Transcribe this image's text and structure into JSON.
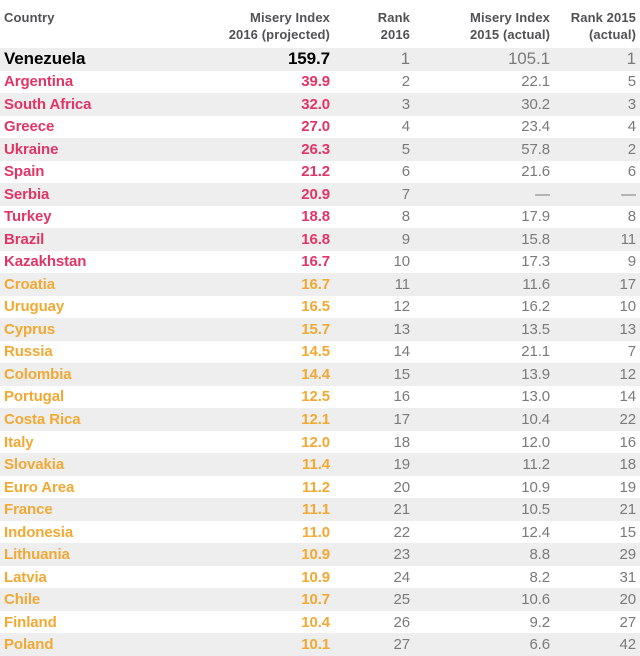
{
  "colors": {
    "pink": "#e23566",
    "gold": "#f1a933",
    "black": "#000000",
    "muted": "#7a7a7a",
    "header": "#525254",
    "stripe": "#eeeeee"
  },
  "chart_data": {
    "type": "table",
    "columns": [
      {
        "id": "country",
        "label_line1": "Country",
        "label_line2": "",
        "align": "left"
      },
      {
        "id": "mi2016",
        "label_line1": "Misery Index",
        "label_line2": "2016 (projected)",
        "align": "right"
      },
      {
        "id": "rank2016",
        "label_line1": "Rank",
        "label_line2": "2016",
        "align": "right"
      },
      {
        "id": "mi2015",
        "label_line1": "Misery Index",
        "label_line2": "2015 (actual)",
        "align": "right"
      },
      {
        "id": "rank2015",
        "label_line1": "Rank 2015",
        "label_line2": "(actual)",
        "align": "right"
      }
    ],
    "rows": [
      {
        "country": "Venezuela",
        "mi2016": "159.7",
        "rank2016": "1",
        "mi2015": "105.1",
        "rank2015": "1",
        "tier": "black"
      },
      {
        "country": "Argentina",
        "mi2016": "39.9",
        "rank2016": "2",
        "mi2015": "22.1",
        "rank2015": "5",
        "tier": "pink"
      },
      {
        "country": "South Africa",
        "mi2016": "32.0",
        "rank2016": "3",
        "mi2015": "30.2",
        "rank2015": "3",
        "tier": "pink"
      },
      {
        "country": "Greece",
        "mi2016": "27.0",
        "rank2016": "4",
        "mi2015": "23.4",
        "rank2015": "4",
        "tier": "pink"
      },
      {
        "country": "Ukraine",
        "mi2016": "26.3",
        "rank2016": "5",
        "mi2015": "57.8",
        "rank2015": "2",
        "tier": "pink"
      },
      {
        "country": "Spain",
        "mi2016": "21.2",
        "rank2016": "6",
        "mi2015": "21.6",
        "rank2015": "6",
        "tier": "pink"
      },
      {
        "country": "Serbia",
        "mi2016": "20.9",
        "rank2016": "7",
        "mi2015": "—",
        "rank2015": "—",
        "tier": "pink"
      },
      {
        "country": "Turkey",
        "mi2016": "18.8",
        "rank2016": "8",
        "mi2015": "17.9",
        "rank2015": "8",
        "tier": "pink"
      },
      {
        "country": "Brazil",
        "mi2016": "16.8",
        "rank2016": "9",
        "mi2015": "15.8",
        "rank2015": "11",
        "tier": "pink"
      },
      {
        "country": "Kazakhstan",
        "mi2016": "16.7",
        "rank2016": "10",
        "mi2015": "17.3",
        "rank2015": "9",
        "tier": "pink"
      },
      {
        "country": "Croatia",
        "mi2016": "16.7",
        "rank2016": "11",
        "mi2015": "11.6",
        "rank2015": "17",
        "tier": "gold"
      },
      {
        "country": "Uruguay",
        "mi2016": "16.5",
        "rank2016": "12",
        "mi2015": "16.2",
        "rank2015": "10",
        "tier": "gold"
      },
      {
        "country": "Cyprus",
        "mi2016": "15.7",
        "rank2016": "13",
        "mi2015": "13.5",
        "rank2015": "13",
        "tier": "gold"
      },
      {
        "country": "Russia",
        "mi2016": "14.5",
        "rank2016": "14",
        "mi2015": "21.1",
        "rank2015": "7",
        "tier": "gold"
      },
      {
        "country": "Colombia",
        "mi2016": "14.4",
        "rank2016": "15",
        "mi2015": "13.9",
        "rank2015": "12",
        "tier": "gold"
      },
      {
        "country": "Portugal",
        "mi2016": "12.5",
        "rank2016": "16",
        "mi2015": "13.0",
        "rank2015": "14",
        "tier": "gold"
      },
      {
        "country": "Costa Rica",
        "mi2016": "12.1",
        "rank2016": "17",
        "mi2015": "10.4",
        "rank2015": "22",
        "tier": "gold"
      },
      {
        "country": "Italy",
        "mi2016": "12.0",
        "rank2016": "18",
        "mi2015": "12.0",
        "rank2015": "16",
        "tier": "gold"
      },
      {
        "country": "Slovakia",
        "mi2016": "11.4",
        "rank2016": "19",
        "mi2015": "11.2",
        "rank2015": "18",
        "tier": "gold"
      },
      {
        "country": "Euro Area",
        "mi2016": "11.2",
        "rank2016": "20",
        "mi2015": "10.9",
        "rank2015": "19",
        "tier": "gold"
      },
      {
        "country": "France",
        "mi2016": "11.1",
        "rank2016": "21",
        "mi2015": "10.5",
        "rank2015": "21",
        "tier": "gold"
      },
      {
        "country": "Indonesia",
        "mi2016": "11.0",
        "rank2016": "22",
        "mi2015": "12.4",
        "rank2015": "15",
        "tier": "gold"
      },
      {
        "country": "Lithuania",
        "mi2016": "10.9",
        "rank2016": "23",
        "mi2015": "8.8",
        "rank2015": "29",
        "tier": "gold"
      },
      {
        "country": "Latvia",
        "mi2016": "10.9",
        "rank2016": "24",
        "mi2015": "8.2",
        "rank2015": "31",
        "tier": "gold"
      },
      {
        "country": "Chile",
        "mi2016": "10.7",
        "rank2016": "25",
        "mi2015": "10.6",
        "rank2015": "20",
        "tier": "gold"
      },
      {
        "country": "Finland",
        "mi2016": "10.4",
        "rank2016": "26",
        "mi2015": "9.2",
        "rank2015": "27",
        "tier": "gold"
      },
      {
        "country": "Poland",
        "mi2016": "10.1",
        "rank2016": "27",
        "mi2015": "6.6",
        "rank2015": "42",
        "tier": "gold"
      }
    ]
  }
}
